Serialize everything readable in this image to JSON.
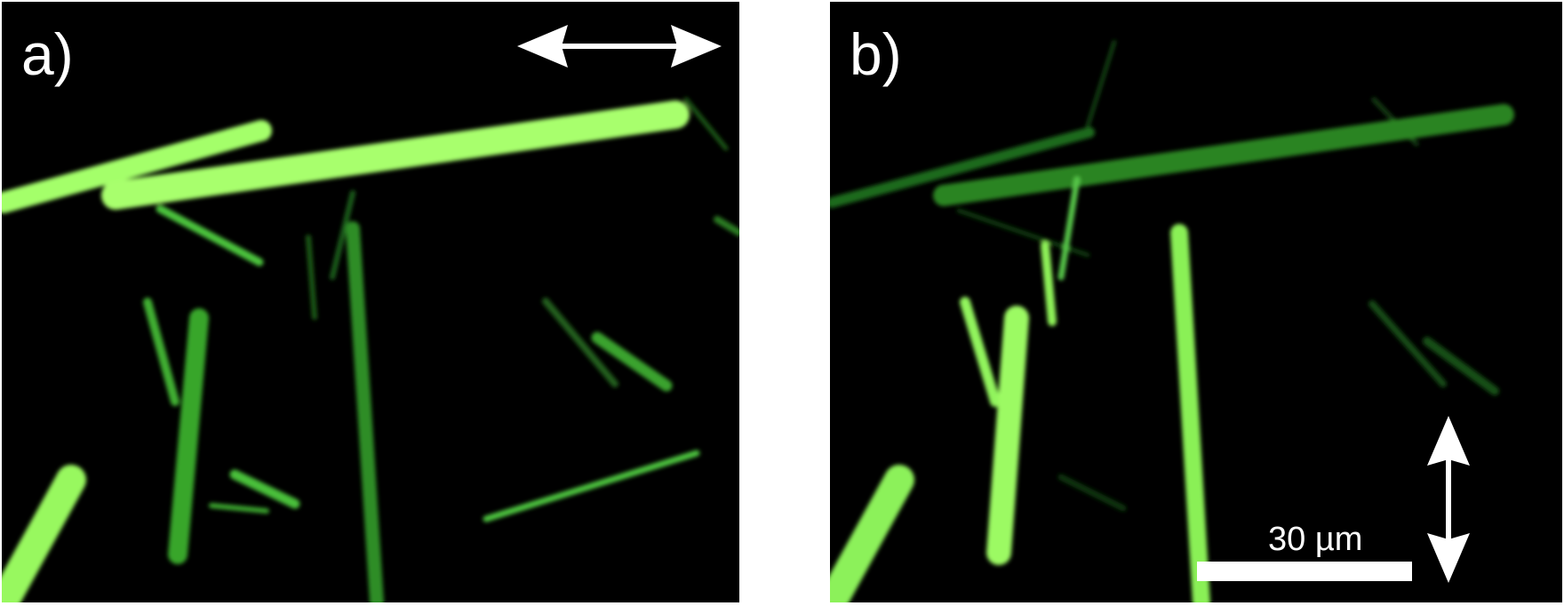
{
  "panels": [
    {
      "label": "a)",
      "polarization_arrow": "horizontal-double-arrow-icon"
    },
    {
      "label": "b)",
      "polarization_arrow": "vertical-double-arrow-icon",
      "scale_bar": {
        "label": "30 µm",
        "length_um": 30
      }
    }
  ],
  "colors": {
    "background": "#000000",
    "bright_green": "#a6ff6a",
    "mid_green": "#3fae32",
    "dim_green": "#1f6a1c",
    "annotation": "#ffffff"
  }
}
